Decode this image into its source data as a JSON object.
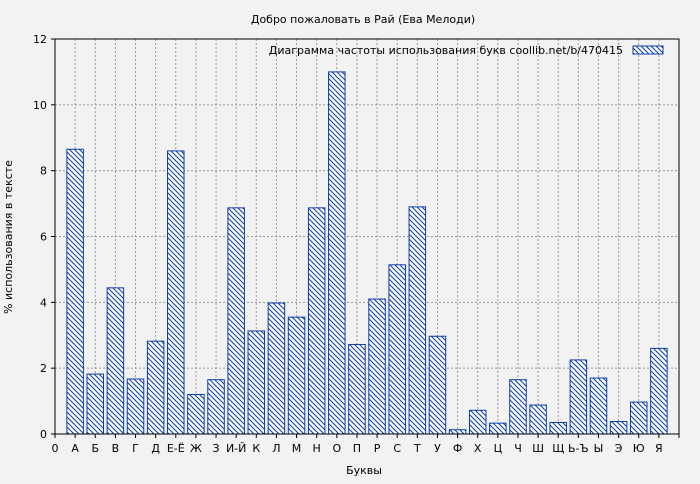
{
  "chart_data": {
    "type": "bar",
    "title": "Добро пожаловать в Рай (Ева Мелоди)",
    "xlabel": "Буквы",
    "ylabel": "% использования в тексте",
    "ylim": [
      0,
      12
    ],
    "yticks": [
      "0",
      "2",
      "4",
      "6",
      "8",
      "10",
      "12"
    ],
    "grid": true,
    "legend_position": "top-right",
    "x_edge_labels": [
      "0",
      "Я"
    ],
    "categories": [
      "А",
      "Б",
      "В",
      "Г",
      "Д",
      "Е-Ё",
      "Ж",
      "З",
      "И-Й",
      "К",
      "Л",
      "М",
      "Н",
      "О",
      "П",
      "Р",
      "С",
      "Т",
      "У",
      "Ф",
      "Х",
      "Ц",
      "Ч",
      "Ш",
      "Щ",
      "Ь-Ъ",
      "Ы",
      "Э",
      "Ю",
      "Я"
    ],
    "series": [
      {
        "name": "Диаграмма частоты использования букв  coollib.net/b/470415",
        "values": [
          8.65,
          1.82,
          4.44,
          1.67,
          2.82,
          8.6,
          1.2,
          1.65,
          6.87,
          3.13,
          3.98,
          3.55,
          6.87,
          11.0,
          2.72,
          4.1,
          5.14,
          6.9,
          2.97,
          0.13,
          0.72,
          0.33,
          1.65,
          0.88,
          0.35,
          2.25,
          1.7,
          0.38,
          0.97,
          2.6
        ]
      }
    ],
    "colors": {
      "bar_stroke": "#0a3ca8",
      "hatch": "#0a3ca8",
      "bar_fill": "#ffffff",
      "grid": "#999999",
      "background": "#f2f2f2"
    }
  }
}
